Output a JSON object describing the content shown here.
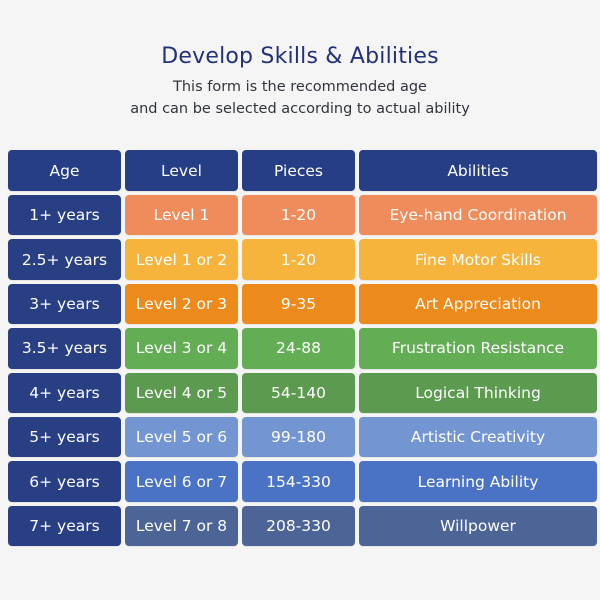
{
  "header": {
    "title": "Develop Skills & Abilities",
    "subtitle_line1": "This form is the recommended age",
    "subtitle_line2": "and can be  selected according to actual ability"
  },
  "table": {
    "columns": [
      "Age",
      "Level",
      "Pieces",
      "Abilities"
    ],
    "rows": [
      {
        "age": "1+ years",
        "level": "Level 1",
        "pieces": "1-20",
        "ability": "Eye-hand Coordination",
        "color": "#ee8c5b"
      },
      {
        "age": "2.5+ years",
        "level": "Level 1 or 2",
        "pieces": "1-20",
        "ability": "Fine Motor Skills",
        "color": "#f6b43d"
      },
      {
        "age": "3+ years",
        "level": "Level 2 or 3",
        "pieces": "9-35",
        "ability": "Art Appreciation",
        "color": "#ec8a1c"
      },
      {
        "age": "3.5+ years",
        "level": "Level 3 or 4",
        "pieces": "24-88",
        "ability": "Frustration Resistance",
        "color": "#63ad55"
      },
      {
        "age": "4+ years",
        "level": "Level 4 or 5",
        "pieces": "54-140",
        "ability": "Logical Thinking",
        "color": "#5c9a4f"
      },
      {
        "age": "5+ years",
        "level": "Level 5 or 6",
        "pieces": "99-180",
        "ability": "Artistic Creativity",
        "color": "#7396d3"
      },
      {
        "age": "6+ years",
        "level": "Level 6 or 7",
        "pieces": "154-330",
        "ability": "Learning Ability",
        "color": "#4b73c5"
      },
      {
        "age": "7+ years",
        "level": "Level 7 or 8",
        "pieces": "208-330",
        "ability": "Willpower",
        "color": "#4d6596"
      }
    ],
    "header_color": "#263e86",
    "age_color": "#283f84"
  }
}
